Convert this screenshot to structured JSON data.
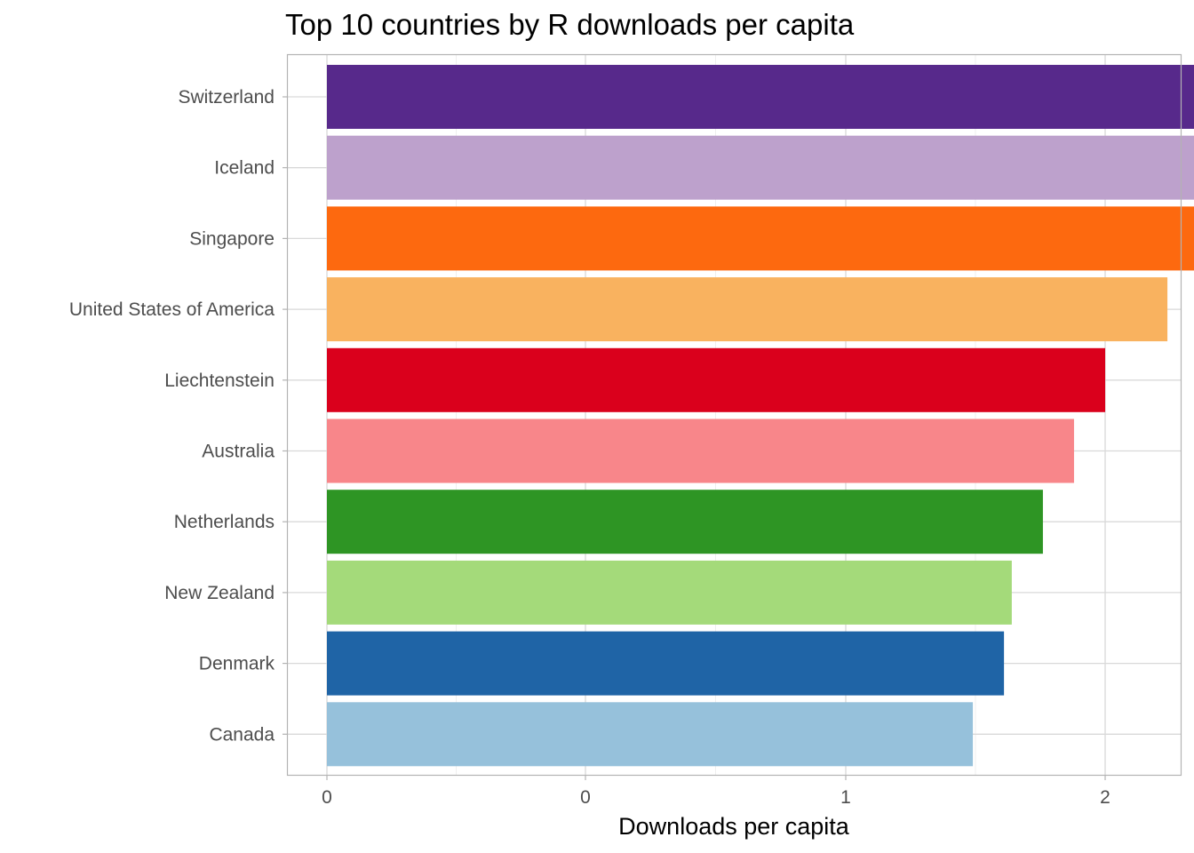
{
  "chart_data": {
    "type": "bar",
    "orientation": "horizontal",
    "title": "Top 10 countries by R downloads per capita",
    "xlabel": "Downloads per capita",
    "ylabel": "",
    "grid": true,
    "legend": "none",
    "x_tick_labels": [
      "0",
      "0",
      "1",
      "2"
    ],
    "categories": [
      "Switzerland",
      "Iceland",
      "Singapore",
      "United States of America",
      "Liechtenstein",
      "Australia",
      "Netherlands",
      "New Zealand",
      "Denmark",
      "Canada"
    ],
    "values": [
      2.14,
      2.09,
      1.14,
      1.08,
      1.0,
      0.96,
      0.92,
      0.88,
      0.87,
      0.83
    ],
    "colors": [
      "#57298b",
      "#bda1cc",
      "#fd690f",
      "#f9b25f",
      "#da001c",
      "#f8868a",
      "#2e9524",
      "#a4da7a",
      "#1f64a6",
      "#96c1db"
    ]
  }
}
